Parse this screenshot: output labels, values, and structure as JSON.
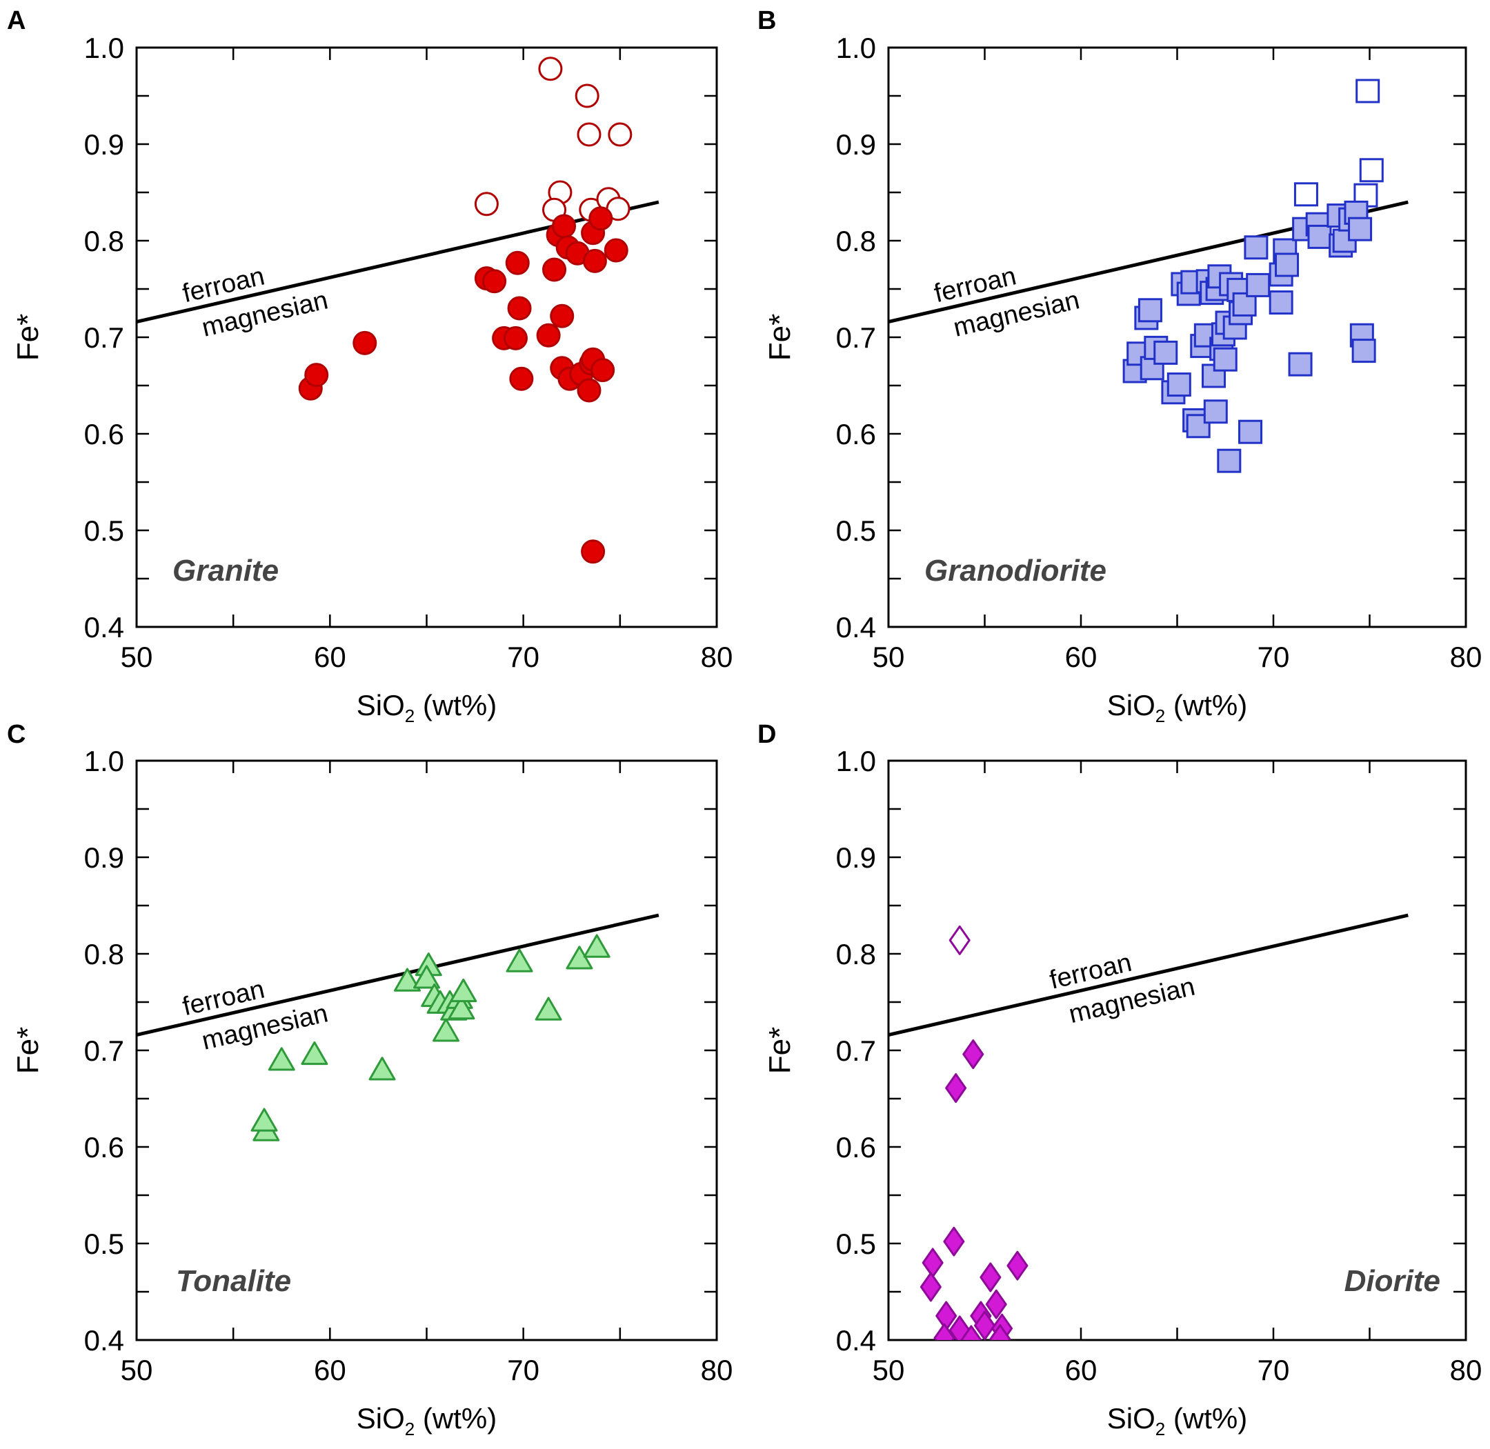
{
  "figure": {
    "panels": [
      {
        "label": "A",
        "rock_name": "Granite"
      },
      {
        "label": "B",
        "rock_name": "Granodiorite"
      },
      {
        "label": "C",
        "rock_name": "Tonalite"
      },
      {
        "label": "D",
        "rock_name": "Diorite"
      }
    ],
    "boundary_labels": {
      "upper": "ferroan",
      "lower": "magnesian"
    },
    "xlabel_main": "SiO",
    "xlabel_sub": "2",
    "xlabel_unit": " (wt%)",
    "ylabel": "Fe*"
  },
  "colors": {
    "granite_fill": "#e00000",
    "granite_edge": "#b00000",
    "granodiorite_fill": "#aab0ee",
    "granodiorite_edge": "#2232c8",
    "tonalite_fill": "#a2eaa4",
    "tonalite_edge": "#2e9a3a",
    "diorite_fill": "#d21ad6",
    "diorite_edge": "#8e0a98",
    "line": "#000000",
    "annotation": "#444444"
  },
  "chart_data": [
    {
      "type": "scatter",
      "panel": "A",
      "title": "Granite",
      "xlabel": "SiO2 (wt%)",
      "ylabel": "Fe*",
      "xlim": [
        50,
        80
      ],
      "ylim": [
        0.4,
        1.0
      ],
      "xticks": [
        "50",
        "60",
        "70",
        "80"
      ],
      "yticks": [
        "0.4",
        "0.5",
        "0.6",
        "0.7",
        "0.8",
        "0.9",
        "1.0"
      ],
      "boundary_line": {
        "x": [
          50,
          77
        ],
        "y": [
          0.716,
          0.84
        ],
        "labels": [
          "ferroan",
          "magnesian"
        ]
      },
      "series": [
        {
          "name": "Granite (ferroan)",
          "marker": "circle",
          "filled": false,
          "points": [
            [
              71.4,
              0.978
            ],
            [
              73.3,
              0.95
            ],
            [
              73.4,
              0.91
            ],
            [
              75.0,
              0.91
            ],
            [
              71.9,
              0.85
            ],
            [
              68.1,
              0.838
            ],
            [
              71.6,
              0.832
            ],
            [
              73.5,
              0.832
            ],
            [
              74.4,
              0.843
            ],
            [
              74.9,
              0.833
            ]
          ]
        },
        {
          "name": "Granite (magnesian)",
          "marker": "circle",
          "filled": true,
          "points": [
            [
              59.0,
              0.647
            ],
            [
              59.3,
              0.661
            ],
            [
              61.8,
              0.694
            ],
            [
              68.1,
              0.761
            ],
            [
              68.5,
              0.758
            ],
            [
              69.7,
              0.777
            ],
            [
              69.8,
              0.73
            ],
            [
              71.6,
              0.77
            ],
            [
              71.8,
              0.806
            ],
            [
              72.1,
              0.815
            ],
            [
              72.3,
              0.793
            ],
            [
              72.8,
              0.787
            ],
            [
              73.6,
              0.808
            ],
            [
              73.7,
              0.779
            ],
            [
              74.0,
              0.823
            ],
            [
              74.8,
              0.79
            ],
            [
              71.3,
              0.702
            ],
            [
              72.0,
              0.722
            ],
            [
              69.0,
              0.699
            ],
            [
              69.6,
              0.699
            ],
            [
              69.9,
              0.657
            ],
            [
              72.0,
              0.668
            ],
            [
              72.4,
              0.657
            ],
            [
              73.0,
              0.662
            ],
            [
              73.4,
              0.645
            ],
            [
              73.5,
              0.673
            ],
            [
              73.6,
              0.677
            ],
            [
              74.1,
              0.666
            ],
            [
              73.6,
              0.478
            ]
          ]
        }
      ]
    },
    {
      "type": "scatter",
      "panel": "B",
      "title": "Granodiorite",
      "xlabel": "SiO2 (wt%)",
      "ylabel": "Fe*",
      "xlim": [
        50,
        80
      ],
      "ylim": [
        0.4,
        1.0
      ],
      "xticks": [
        "50",
        "60",
        "70",
        "80"
      ],
      "yticks": [
        "0.4",
        "0.5",
        "0.6",
        "0.7",
        "0.8",
        "0.9",
        "1.0"
      ],
      "boundary_line": {
        "x": [
          50,
          77
        ],
        "y": [
          0.716,
          0.84
        ],
        "labels": [
          "ferroan",
          "magnesian"
        ]
      },
      "series": [
        {
          "name": "Granodiorite (ferroan)",
          "marker": "square",
          "filled": false,
          "points": [
            [
              74.9,
              0.955
            ],
            [
              75.1,
              0.873
            ],
            [
              71.7,
              0.848
            ],
            [
              74.8,
              0.847
            ]
          ]
        },
        {
          "name": "Granodiorite (magnesian)",
          "marker": "square",
          "filled": true,
          "points": [
            [
              62.8,
              0.665
            ],
            [
              63.0,
              0.683
            ],
            [
              63.4,
              0.72
            ],
            [
              63.6,
              0.728
            ],
            [
              63.7,
              0.668
            ],
            [
              63.9,
              0.689
            ],
            [
              64.4,
              0.684
            ],
            [
              64.8,
              0.643
            ],
            [
              65.1,
              0.651
            ],
            [
              65.3,
              0.755
            ],
            [
              65.6,
              0.745
            ],
            [
              65.8,
              0.757
            ],
            [
              65.9,
              0.614
            ],
            [
              66.1,
              0.608
            ],
            [
              66.3,
              0.691
            ],
            [
              66.5,
              0.702
            ],
            [
              66.6,
              0.758
            ],
            [
              66.8,
              0.746
            ],
            [
              66.9,
              0.66
            ],
            [
              67.0,
              0.623
            ],
            [
              67.1,
              0.75
            ],
            [
              67.2,
              0.763
            ],
            [
              67.3,
              0.688
            ],
            [
              67.4,
              0.703
            ],
            [
              67.5,
              0.677
            ],
            [
              67.6,
              0.715
            ],
            [
              67.7,
              0.572
            ],
            [
              67.8,
              0.755
            ],
            [
              68.0,
              0.71
            ],
            [
              68.2,
              0.749
            ],
            [
              68.3,
              0.725
            ],
            [
              68.5,
              0.734
            ],
            [
              68.8,
              0.602
            ],
            [
              69.1,
              0.793
            ],
            [
              69.2,
              0.754
            ],
            [
              70.4,
              0.765
            ],
            [
              70.4,
              0.736
            ],
            [
              70.6,
              0.79
            ],
            [
              70.7,
              0.775
            ],
            [
              71.4,
              0.672
            ],
            [
              71.6,
              0.812
            ],
            [
              72.3,
              0.817
            ],
            [
              72.4,
              0.804
            ],
            [
              73.4,
              0.826
            ],
            [
              73.5,
              0.795
            ],
            [
              73.7,
              0.8
            ],
            [
              74.0,
              0.822
            ],
            [
              74.3,
              0.829
            ],
            [
              74.5,
              0.812
            ],
            [
              74.6,
              0.702
            ],
            [
              74.7,
              0.686
            ]
          ]
        }
      ]
    },
    {
      "type": "scatter",
      "panel": "C",
      "title": "Tonalite",
      "xlabel": "SiO2 (wt%)",
      "ylabel": "Fe*",
      "xlim": [
        50,
        80
      ],
      "ylim": [
        0.4,
        1.0
      ],
      "xticks": [
        "50",
        "60",
        "70",
        "80"
      ],
      "yticks": [
        "0.4",
        "0.5",
        "0.6",
        "0.7",
        "0.8",
        "0.9",
        "1.0"
      ],
      "boundary_line": {
        "x": [
          50,
          77
        ],
        "y": [
          0.716,
          0.84
        ],
        "labels": [
          "ferroan",
          "magnesian"
        ]
      },
      "series": [
        {
          "name": "Tonalite (magnesian)",
          "marker": "triangle",
          "filled": true,
          "points": [
            [
              56.7,
              0.616
            ],
            [
              56.6,
              0.626
            ],
            [
              57.5,
              0.689
            ],
            [
              59.2,
              0.695
            ],
            [
              62.7,
              0.679
            ],
            [
              64.0,
              0.771
            ],
            [
              65.1,
              0.787
            ],
            [
              65.0,
              0.774
            ],
            [
              65.4,
              0.755
            ],
            [
              65.7,
              0.748
            ],
            [
              66.0,
              0.719
            ],
            [
              66.2,
              0.748
            ],
            [
              66.4,
              0.741
            ],
            [
              66.7,
              0.753
            ],
            [
              66.8,
              0.742
            ],
            [
              66.9,
              0.76
            ],
            [
              69.8,
              0.791
            ],
            [
              71.3,
              0.741
            ],
            [
              72.9,
              0.794
            ],
            [
              73.8,
              0.806
            ]
          ]
        }
      ]
    },
    {
      "type": "scatter",
      "panel": "D",
      "title": "Diorite",
      "xlabel": "SiO2 (wt%)",
      "ylabel": "Fe*",
      "xlim": [
        50,
        80
      ],
      "ylim": [
        0.4,
        1.0
      ],
      "xticks": [
        "50",
        "60",
        "70",
        "80"
      ],
      "yticks": [
        "0.4",
        "0.5",
        "0.6",
        "0.7",
        "0.8",
        "0.9",
        "1.0"
      ],
      "boundary_line": {
        "x": [
          50,
          77
        ],
        "y": [
          0.716,
          0.84
        ],
        "labels": [
          "ferroan",
          "magnesian"
        ]
      },
      "series": [
        {
          "name": "Diorite (ferroan)",
          "marker": "diamond",
          "filled": false,
          "points": [
            [
              53.7,
              0.814
            ]
          ]
        },
        {
          "name": "Diorite (magnesian)",
          "marker": "diamond",
          "filled": true,
          "points": [
            [
              54.4,
              0.696
            ],
            [
              53.5,
              0.661
            ],
            [
              53.4,
              0.502
            ],
            [
              52.3,
              0.48
            ],
            [
              52.2,
              0.455
            ],
            [
              53.0,
              0.425
            ],
            [
              52.9,
              0.402
            ],
            [
              53.7,
              0.41
            ],
            [
              54.3,
              0.4
            ],
            [
              54.8,
              0.425
            ],
            [
              55.0,
              0.415
            ],
            [
              55.3,
              0.465
            ],
            [
              55.6,
              0.437
            ],
            [
              55.9,
              0.412
            ],
            [
              55.8,
              0.401
            ],
            [
              56.7,
              0.477
            ]
          ]
        }
      ]
    }
  ]
}
